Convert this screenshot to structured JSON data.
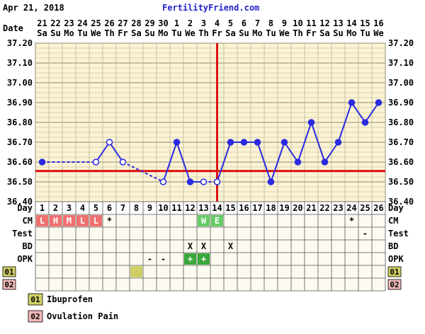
{
  "header": {
    "date": "Apr 21, 2018",
    "site": "FertilityFriend.com"
  },
  "labels": {
    "date_row": "Date",
    "day_row": "Day",
    "cm": "CM",
    "test": "Test",
    "bd": "BD",
    "opk": "OPK",
    "r01": "01",
    "r02": "02"
  },
  "legend": [
    {
      "code": "01",
      "label": "Ibuprofen",
      "color": "#cfcf66"
    },
    {
      "code": "02",
      "label": "Ovulation Pain",
      "color": "#f0b8b8"
    }
  ],
  "colors": {
    "series": "#2a2ae0",
    "coverline": "#dd1111",
    "ovulation_line": "#dd1111",
    "plot_bg": "#fbf3d3",
    "grid": "#b9b39a",
    "cm_red": "#f07070",
    "cm_green": "#66cc66",
    "opk_green": "#39a839",
    "med_01": "#cfcf66"
  },
  "chart_data": {
    "type": "line",
    "days": [
      1,
      2,
      3,
      4,
      5,
      6,
      7,
      8,
      9,
      10,
      11,
      12,
      13,
      14,
      15,
      16,
      17,
      18,
      19,
      20,
      21,
      22,
      23,
      24,
      25,
      26
    ],
    "dates": [
      "21",
      "22",
      "23",
      "24",
      "25",
      "26",
      "27",
      "28",
      "29",
      "30",
      "1",
      "2",
      "3",
      "4",
      "5",
      "6",
      "7",
      "8",
      "9",
      "10",
      "11",
      "12",
      "13",
      "14",
      "15",
      "16"
    ],
    "weekdays": [
      "Sa",
      "Su",
      "Mo",
      "Tu",
      "We",
      "Th",
      "Fr",
      "Sa",
      "Su",
      "Mo",
      "Tu",
      "We",
      "Th",
      "Fr",
      "Sa",
      "Su",
      "Mo",
      "Tu",
      "We",
      "Th",
      "Fr",
      "Sa",
      "Su",
      "Mo",
      "Tu",
      "We"
    ],
    "y_ticks": [
      "36.40",
      "36.50",
      "36.60",
      "36.70",
      "36.80",
      "36.90",
      "37.00",
      "37.10",
      "37.20"
    ],
    "ylim": [
      36.4,
      37.2
    ],
    "temps": [
      36.6,
      null,
      null,
      null,
      36.6,
      36.7,
      36.6,
      null,
      null,
      36.5,
      36.7,
      36.5,
      36.5,
      36.5,
      36.7,
      36.7,
      36.7,
      36.5,
      36.7,
      36.6,
      36.8,
      36.6,
      36.7,
      36.9,
      36.8,
      36.9
    ],
    "open_points": [
      5,
      6,
      7,
      10,
      13,
      14
    ],
    "dashed_segments": [
      [
        1,
        5
      ],
      [
        7,
        10
      ],
      [
        13,
        14
      ]
    ],
    "coverline": 36.555,
    "ovulation_day": 14,
    "grid": true
  },
  "rows": {
    "cm": [
      {
        "day": 1,
        "text": "L",
        "color": "#f07070"
      },
      {
        "day": 2,
        "text": "H",
        "color": "#f07070"
      },
      {
        "day": 3,
        "text": "M",
        "color": "#f07070"
      },
      {
        "day": 4,
        "text": "L",
        "color": "#f07070"
      },
      {
        "day": 5,
        "text": "L",
        "color": "#f07070"
      },
      {
        "day": 6,
        "text": "*",
        "color": ""
      },
      {
        "day": 13,
        "text": "W",
        "color": "#66cc66"
      },
      {
        "day": 14,
        "text": "E",
        "color": "#66cc66"
      },
      {
        "day": 24,
        "text": "*",
        "color": ""
      }
    ],
    "test": [
      {
        "day": 25,
        "text": "-",
        "color": ""
      }
    ],
    "bd": [
      {
        "day": 12,
        "text": "X",
        "color": ""
      },
      {
        "day": 13,
        "text": "X",
        "color": ""
      },
      {
        "day": 15,
        "text": "X",
        "color": ""
      }
    ],
    "opk": [
      {
        "day": 9,
        "text": "-",
        "color": ""
      },
      {
        "day": 10,
        "text": "-",
        "color": ""
      },
      {
        "day": 12,
        "text": "+",
        "color": "#39a839"
      },
      {
        "day": 13,
        "text": "+",
        "color": "#39a839"
      }
    ],
    "r01": [
      {
        "day": 8,
        "text": "",
        "color": "#cfcf66"
      }
    ],
    "r02": []
  }
}
